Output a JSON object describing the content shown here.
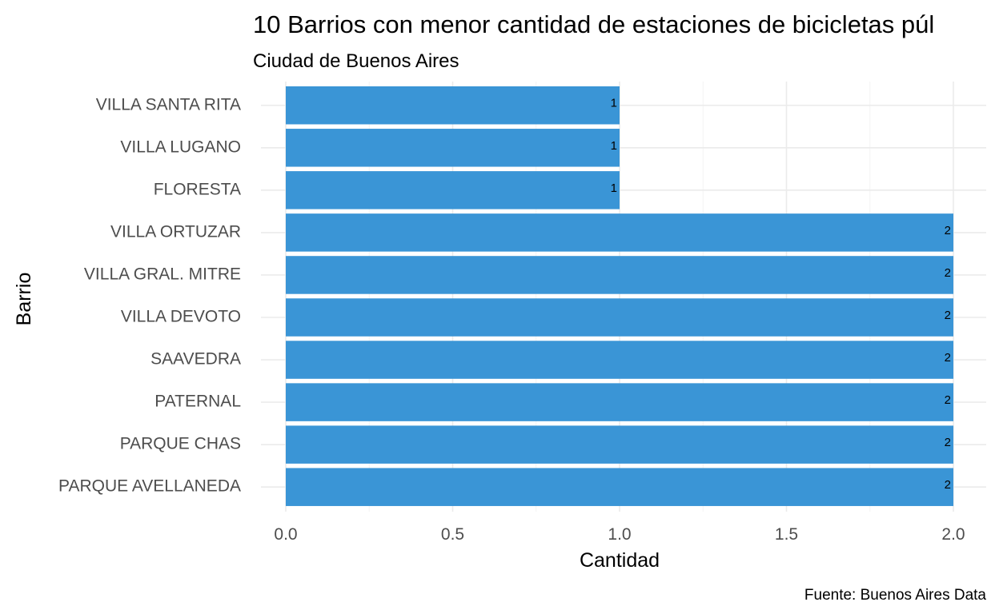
{
  "chart_data": {
    "type": "bar",
    "orientation": "horizontal",
    "title": "10 Barrios con menor cantidad de estaciones de bicicletas púl",
    "subtitle": "Ciudad de Buenos Aires",
    "xlabel": "Cantidad",
    "ylabel": "Barrio",
    "caption": "Fuente: Buenos Aires Data",
    "categories": [
      "VILLA SANTA RITA",
      "VILLA LUGANO",
      "FLORESTA",
      "VILLA ORTUZAR",
      "VILLA GRAL. MITRE",
      "VILLA DEVOTO",
      "SAAVEDRA",
      "PATERNAL",
      "PARQUE CHAS",
      "PARQUE AVELLANEDA"
    ],
    "values": [
      1,
      1,
      1,
      2,
      2,
      2,
      2,
      2,
      2,
      2
    ],
    "data_labels": [
      "1",
      "1",
      "1",
      "2",
      "2",
      "2",
      "2",
      "2",
      "2",
      "2"
    ],
    "xlim": [
      0,
      2
    ],
    "x_ticks": [
      0,
      0.5,
      1,
      1.5,
      2
    ],
    "x_tick_labels": [
      "0.0",
      "0.5",
      "1.0",
      "1.5",
      "2.0"
    ],
    "grid": true,
    "legend": "none",
    "bar_color": "#3a95d6"
  }
}
